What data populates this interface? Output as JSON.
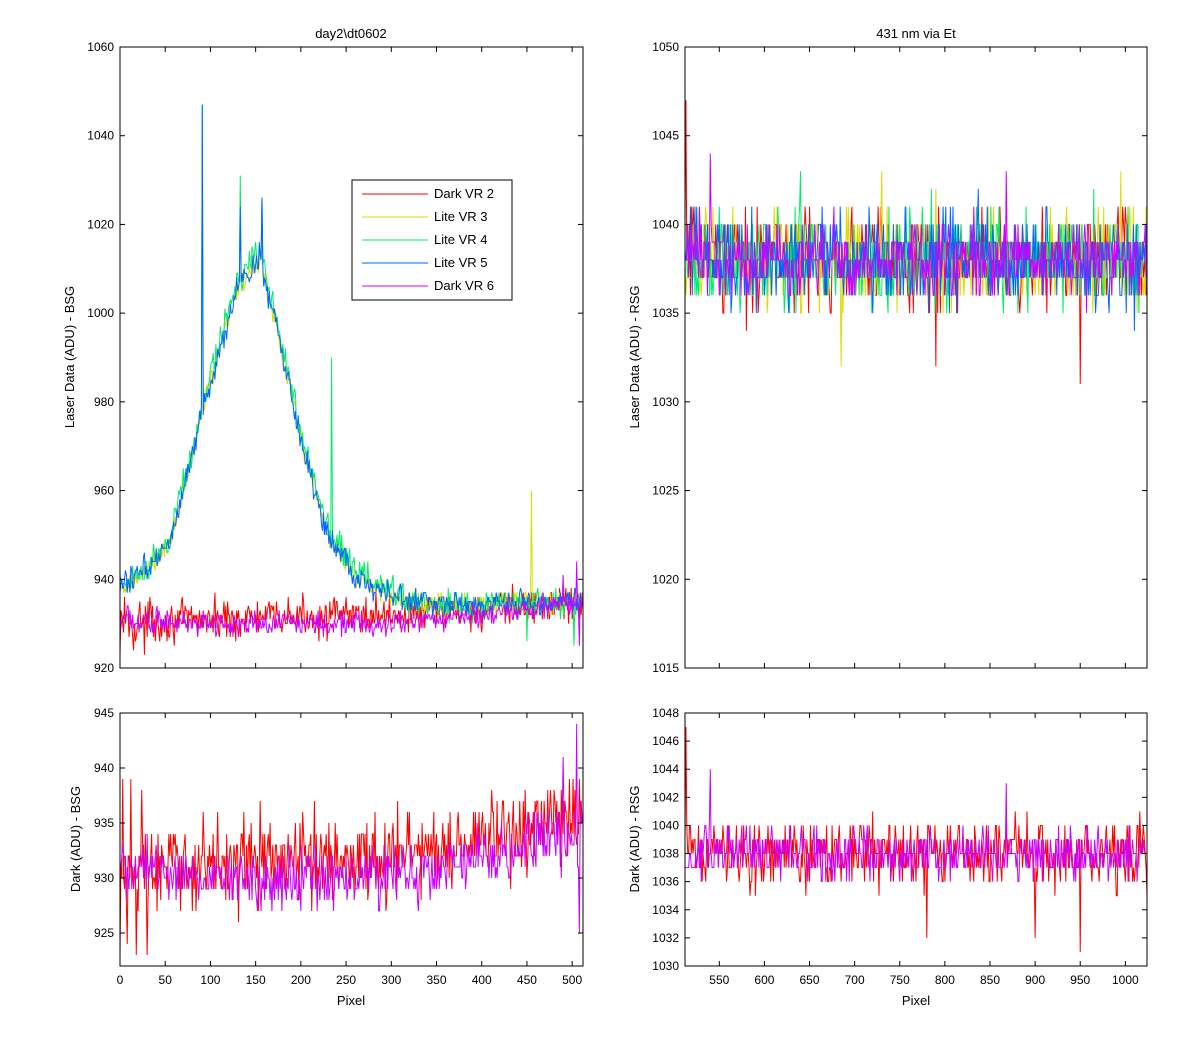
{
  "chart_data": [
    {
      "id": "tl",
      "type": "line",
      "title": "day2\\dt0602",
      "xlabel": "",
      "ylabel": "Laser Data (ADU) - BSG",
      "xlim": [
        0,
        512
      ],
      "ylim": [
        920,
        1060
      ],
      "xticks": [
        0,
        50,
        100,
        150,
        200,
        250,
        300,
        350,
        400,
        450,
        500
      ],
      "yticks": [
        920,
        940,
        960,
        980,
        1000,
        1020,
        1040,
        1060
      ],
      "xtick_labels_visible": false,
      "legend": "inside-upper-right",
      "series": [
        {
          "name": "Dark VR 2",
          "color": "#ff0000",
          "baseline": [
            [
              0,
              930
            ],
            [
              100,
              931
            ],
            [
              300,
              932
            ],
            [
              400,
              933
            ],
            [
              512,
              935
            ]
          ],
          "noise": 3.5,
          "spikes": [
            [
              0,
              923
            ],
            [
              5,
              936
            ],
            [
              15,
              924
            ],
            [
              22,
              935
            ],
            [
              27,
              923
            ],
            [
              33,
              936
            ]
          ]
        },
        {
          "name": "Lite VR 3",
          "color": "#dddd00",
          "baseline": [
            [
              0,
              937
            ],
            [
              30,
              942
            ],
            [
              55,
              948
            ],
            [
              70,
              960
            ],
            [
              88,
              975
            ],
            [
              95,
              981
            ],
            [
              130,
              1006
            ],
            [
              155,
              1012
            ],
            [
              175,
              995
            ],
            [
              200,
              972
            ],
            [
              230,
              950
            ],
            [
              260,
              941
            ],
            [
              300,
              936
            ],
            [
              350,
              934
            ],
            [
              512,
              935
            ]
          ],
          "noise": 2.2,
          "spikes": [
            [
              91,
              1044
            ],
            [
              92,
              982
            ],
            [
              133,
              1028
            ],
            [
              157,
              1026
            ],
            [
              455,
              960
            ],
            [
              456,
              935
            ]
          ]
        },
        {
          "name": "Lite VR 4",
          "color": "#00ee66",
          "baseline": [
            [
              0,
              939
            ],
            [
              30,
              943
            ],
            [
              55,
              949
            ],
            [
              70,
              961
            ],
            [
              88,
              976
            ],
            [
              95,
              982
            ],
            [
              130,
              1008
            ],
            [
              155,
              1014
            ],
            [
              175,
              997
            ],
            [
              200,
              973
            ],
            [
              230,
              951
            ],
            [
              260,
              942
            ],
            [
              300,
              937
            ],
            [
              350,
              934
            ],
            [
              512,
              935
            ]
          ],
          "noise": 2.6,
          "spikes": [
            [
              91,
              1047
            ],
            [
              92,
              983
            ],
            [
              133,
              1031
            ],
            [
              157,
              1026
            ],
            [
              234,
              990
            ],
            [
              235,
              948
            ],
            [
              450,
              926
            ],
            [
              502,
              925
            ]
          ]
        },
        {
          "name": "Lite VR 5",
          "color": "#0066ff",
          "baseline": [
            [
              0,
              938
            ],
            [
              30,
              943
            ],
            [
              55,
              948
            ],
            [
              70,
              960
            ],
            [
              88,
              975
            ],
            [
              95,
              980
            ],
            [
              130,
              1006
            ],
            [
              155,
              1012
            ],
            [
              175,
              995
            ],
            [
              200,
              971
            ],
            [
              230,
              950
            ],
            [
              260,
              941
            ],
            [
              300,
              936
            ],
            [
              350,
              934
            ],
            [
              512,
              935
            ]
          ],
          "noise": 2.4,
          "spikes": [
            [
              91,
              1047
            ],
            [
              92,
              977
            ],
            [
              133,
              1024
            ],
            [
              157,
              1026
            ]
          ]
        },
        {
          "name": "Dark VR 6",
          "color": "#cc00ff",
          "baseline": [
            [
              0,
              931
            ],
            [
              100,
              930
            ],
            [
              200,
              930
            ],
            [
              300,
              930
            ],
            [
              400,
              932
            ],
            [
              512,
              935
            ]
          ],
          "noise": 2.3,
          "spikes": [
            [
              490,
              941
            ],
            [
              505,
              944
            ],
            [
              508,
              925
            ]
          ]
        }
      ]
    },
    {
      "id": "tr",
      "type": "line",
      "title": "431 nm via Et",
      "xlabel": "",
      "ylabel": "Laser Data (ADU) - RSG",
      "xlim": [
        512,
        1024
      ],
      "ylim": [
        1015,
        1050
      ],
      "xticks": [
        550,
        600,
        650,
        700,
        750,
        800,
        850,
        900,
        950,
        1000
      ],
      "yticks": [
        1015,
        1020,
        1025,
        1030,
        1035,
        1040,
        1045,
        1050
      ],
      "xtick_labels_visible": false,
      "series": [
        {
          "name": "Dark VR 2",
          "color": "#ff0000",
          "baseline": [
            [
              512,
              1038
            ],
            [
              1024,
              1038
            ]
          ],
          "noise": 2.2,
          "spikes": [
            [
              513,
              1047
            ],
            [
              515,
              1038
            ],
            [
              950,
              1031
            ],
            [
              790,
              1032
            ]
          ]
        },
        {
          "name": "Lite VR 3",
          "color": "#dddd00",
          "baseline": [
            [
              512,
              1038
            ],
            [
              1024,
              1038
            ]
          ],
          "noise": 2.2,
          "spikes": [
            [
              685,
              1032
            ],
            [
              730,
              1043
            ],
            [
              995,
              1043
            ]
          ]
        },
        {
          "name": "Lite VR 4",
          "color": "#00ee66",
          "baseline": [
            [
              512,
              1038
            ],
            [
              1024,
              1038
            ]
          ],
          "noise": 2.2,
          "spikes": [
            [
              640,
              1043
            ]
          ]
        },
        {
          "name": "Lite VR 5",
          "color": "#0066ff",
          "baseline": [
            [
              512,
              1038
            ],
            [
              1024,
              1038
            ]
          ],
          "noise": 2.2,
          "spikes": [
            [
              1010,
              1034
            ]
          ]
        },
        {
          "name": "Dark VR 6",
          "color": "#cc00ff",
          "baseline": [
            [
              512,
              1038
            ],
            [
              1024,
              1038
            ]
          ],
          "noise": 1.7,
          "spikes": [
            [
              540,
              1044
            ],
            [
              868,
              1043
            ]
          ]
        }
      ]
    },
    {
      "id": "bl",
      "type": "line",
      "title": "",
      "xlabel": "Pixel",
      "ylabel": "Dark (ADU) - BSG",
      "xlim": [
        0,
        512
      ],
      "ylim": [
        922,
        945
      ],
      "xticks": [
        0,
        50,
        100,
        150,
        200,
        250,
        300,
        350,
        400,
        450,
        500
      ],
      "yticks": [
        925,
        930,
        935,
        940,
        945
      ],
      "xtick_labels_visible": true,
      "series": [
        {
          "name": "Dark VR 2",
          "color": "#ff0000",
          "baseline": [
            [
              0,
              930
            ],
            [
              100,
              931.5
            ],
            [
              300,
              932
            ],
            [
              400,
              933.5
            ],
            [
              512,
              935.5
            ]
          ],
          "noise": 3.2,
          "spikes": [
            [
              0,
              923
            ],
            [
              3,
              939
            ],
            [
              8,
              924
            ],
            [
              12,
              939
            ],
            [
              18,
              923
            ],
            [
              24,
              938
            ],
            [
              30,
              923
            ],
            [
              35,
              934
            ]
          ]
        },
        {
          "name": "Dark VR 6",
          "color": "#cc00ff",
          "baseline": [
            [
              0,
              931
            ],
            [
              100,
              930
            ],
            [
              200,
              930
            ],
            [
              300,
              930
            ],
            [
              400,
              931.5
            ],
            [
              512,
              934.5
            ]
          ],
          "noise": 2.2,
          "spikes": [
            [
              490,
              941
            ],
            [
              505,
              944
            ],
            [
              508,
              925
            ],
            [
              510,
              935
            ]
          ]
        }
      ]
    },
    {
      "id": "br",
      "type": "line",
      "title": "",
      "xlabel": "Pixel",
      "ylabel": "Dark (ADU) - RSG",
      "xlim": [
        512,
        1024
      ],
      "ylim": [
        1030,
        1048
      ],
      "xticks": [
        550,
        600,
        650,
        700,
        750,
        800,
        850,
        900,
        950,
        1000
      ],
      "yticks": [
        1030,
        1032,
        1034,
        1036,
        1038,
        1040,
        1042,
        1044,
        1046,
        1048
      ],
      "xtick_labels_visible": true,
      "series": [
        {
          "name": "Dark VR 2",
          "color": "#ff0000",
          "baseline": [
            [
              512,
              1038
            ],
            [
              1024,
              1038
            ]
          ],
          "noise": 2.0,
          "spikes": [
            [
              513,
              1047
            ],
            [
              515,
              1038
            ],
            [
              780,
              1032
            ],
            [
              950,
              1031
            ],
            [
              900,
              1032
            ]
          ]
        },
        {
          "name": "Dark VR 6",
          "color": "#cc00ff",
          "baseline": [
            [
              512,
              1038
            ],
            [
              1024,
              1038
            ]
          ],
          "noise": 1.5,
          "spikes": [
            [
              540,
              1044
            ],
            [
              868,
              1043
            ]
          ]
        }
      ]
    }
  ]
}
